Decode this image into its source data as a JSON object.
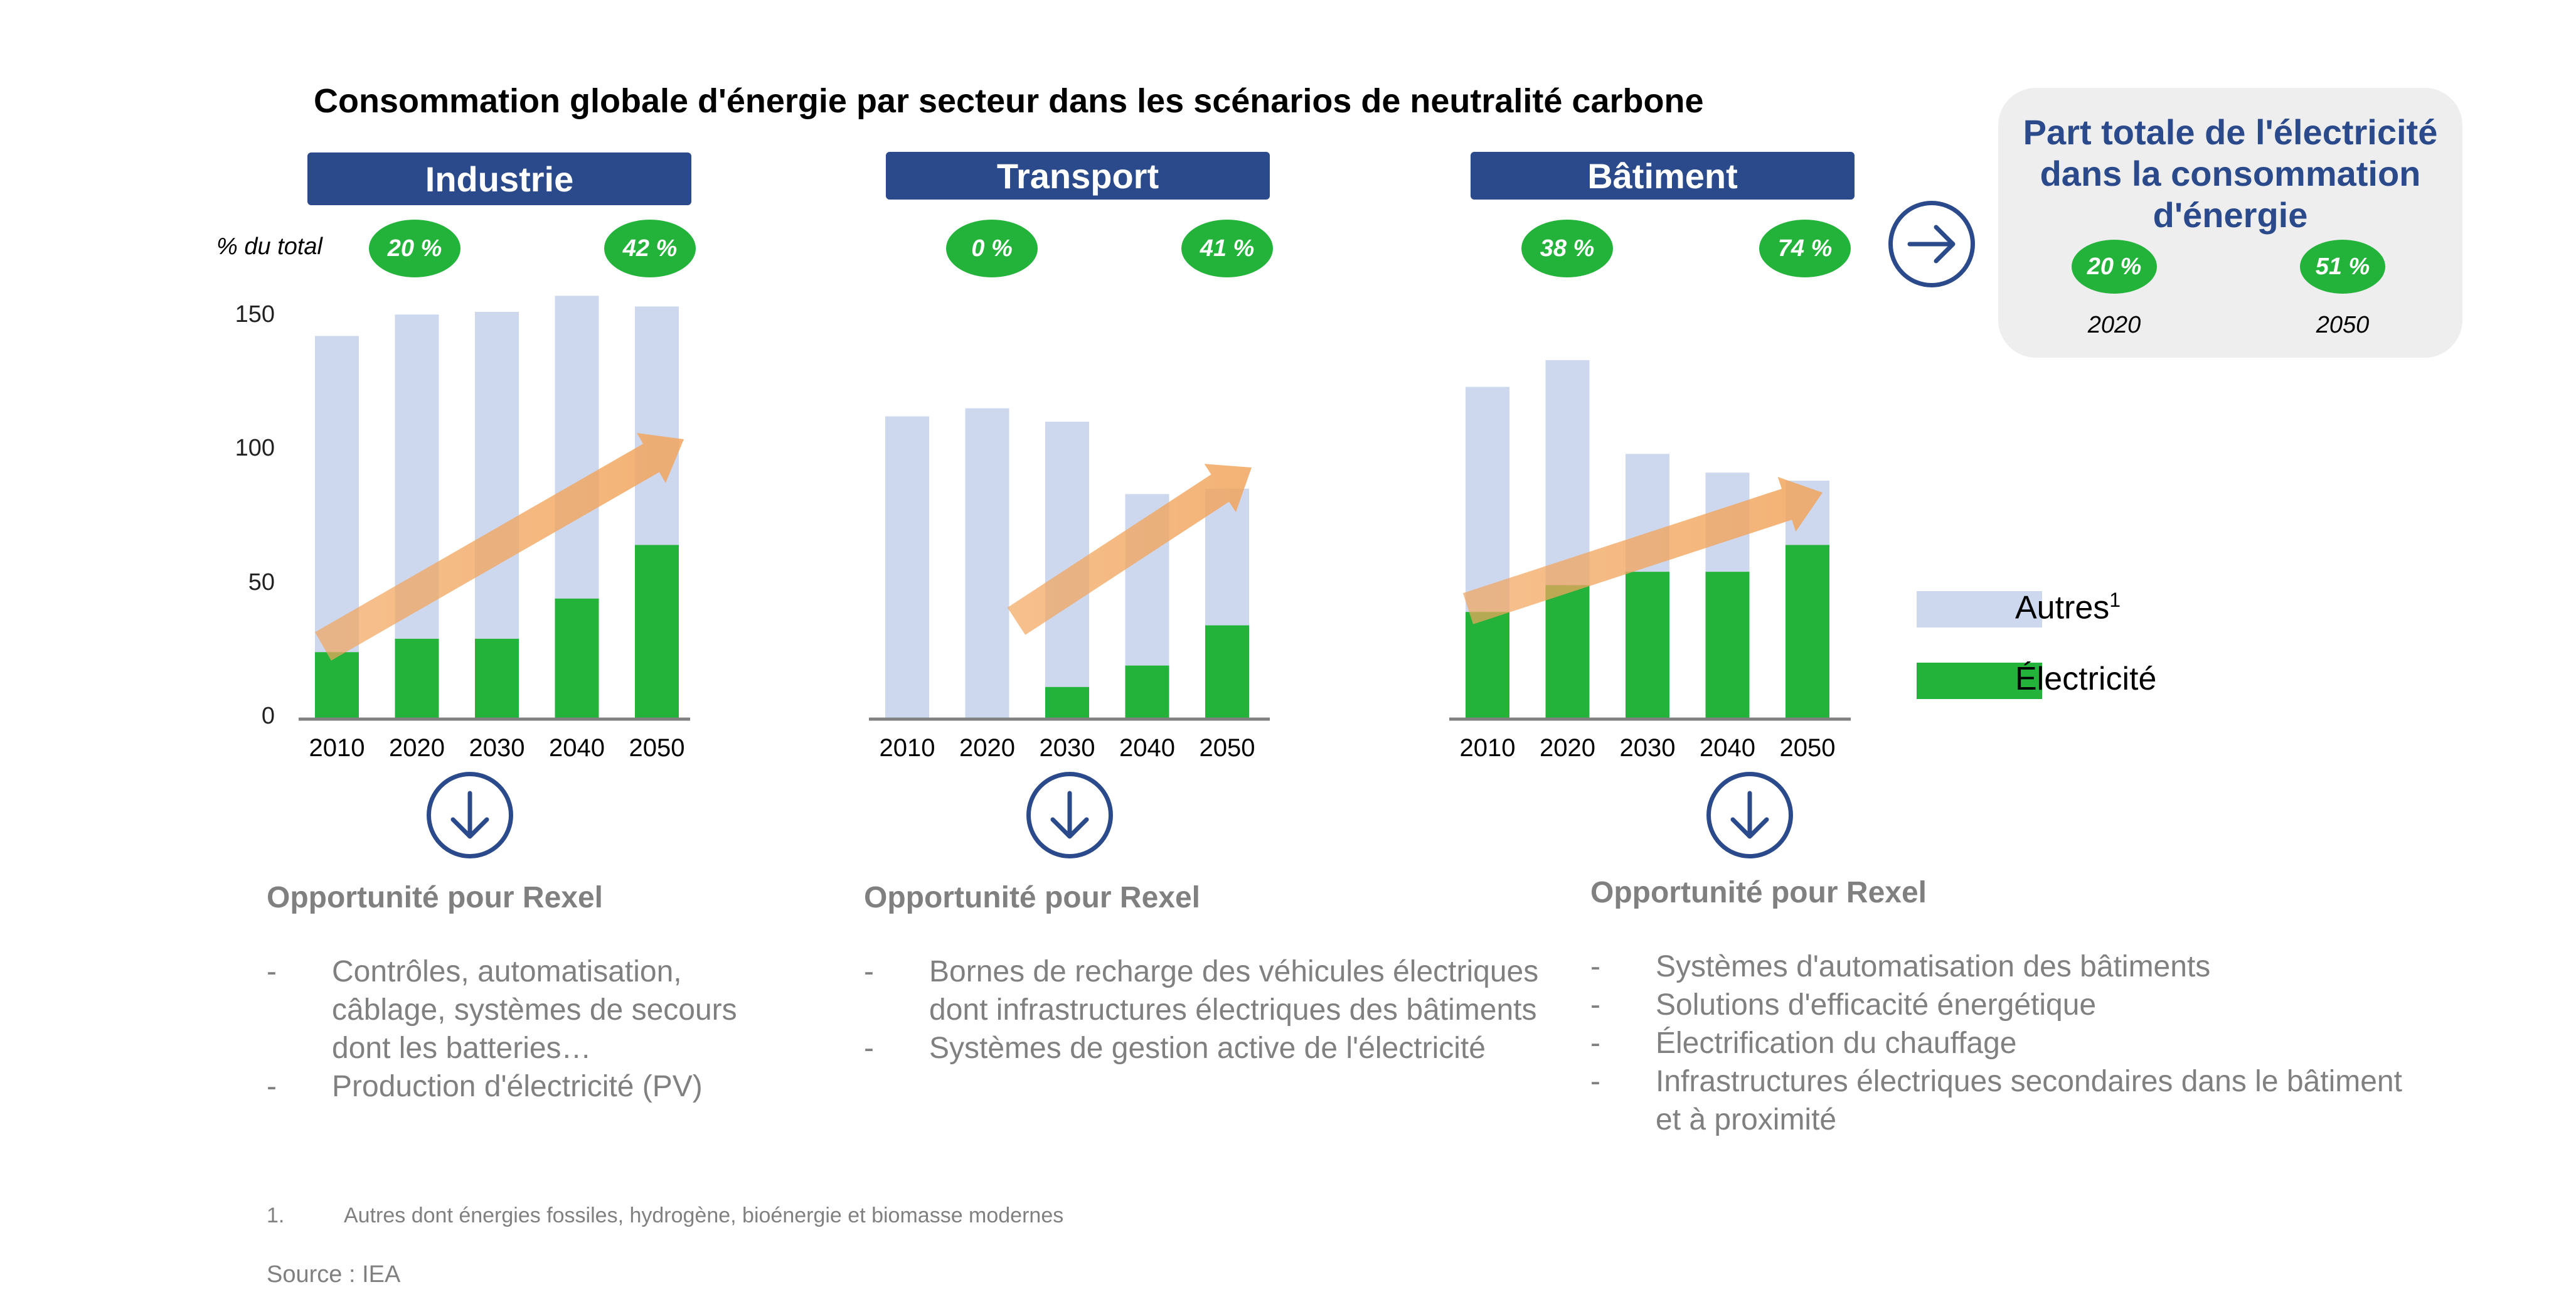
{
  "title": "Consommation globale d'énergie par secteur dans les scénarios de neutralité carbone",
  "y_axis_label": "% du total",
  "colors": {
    "autres": "#cdd8ef",
    "electricite": "#24b33a",
    "header": "#2b4a8b",
    "arrow": "#f2a55d"
  },
  "chart_data": [
    {
      "type": "bar",
      "title": "Industrie",
      "categories": [
        "2010",
        "2020",
        "2030",
        "2040",
        "2050"
      ],
      "series": [
        {
          "name": "Électricité",
          "values": [
            25,
            30,
            30,
            45,
            65
          ]
        },
        {
          "name": "Autres¹",
          "values": [
            118,
            121,
            122,
            113,
            89
          ]
        }
      ],
      "totals": [
        143,
        151,
        152,
        158,
        154
      ],
      "ylim": [
        0,
        150
      ],
      "yticks": [
        "0",
        "50",
        "100",
        "150"
      ],
      "share_2020": "20 %",
      "share_2050": "42 %"
    },
    {
      "type": "bar",
      "title": "Transport",
      "categories": [
        "2010",
        "2020",
        "2030",
        "2040",
        "2050"
      ],
      "series": [
        {
          "name": "Électricité",
          "values": [
            0,
            0,
            12,
            20,
            35
          ]
        },
        {
          "name": "Autres¹",
          "values": [
            113,
            116,
            99,
            64,
            51
          ]
        }
      ],
      "totals": [
        113,
        116,
        111,
        84,
        86
      ],
      "ylim": [
        0,
        150
      ],
      "share_2020": "0 %",
      "share_2050": "41 %"
    },
    {
      "type": "bar",
      "title": "Bâtiment",
      "categories": [
        "2010",
        "2020",
        "2030",
        "2040",
        "2050"
      ],
      "series": [
        {
          "name": "Électricité",
          "values": [
            40,
            50,
            55,
            55,
            65
          ]
        },
        {
          "name": "Autres¹",
          "values": [
            84,
            84,
            44,
            37,
            24
          ]
        }
      ],
      "totals": [
        124,
        134,
        99,
        92,
        89
      ],
      "ylim": [
        0,
        150
      ],
      "share_2020": "38 %",
      "share_2050": "74 %"
    }
  ],
  "part_totale": {
    "title": "Part totale de l'électricité dans la consommation d'énergie",
    "values": [
      {
        "year": "2020",
        "pct": "20 %"
      },
      {
        "year": "2050",
        "pct": "51 %"
      }
    ]
  },
  "legend": {
    "autres": "Autres",
    "autres_sup": "1",
    "electricite": "Électricité"
  },
  "opportunities": [
    {
      "title": "Opportunité pour Rexel",
      "items": [
        "Contrôles, automatisation, câblage, systèmes de secours dont les batteries…",
        "Production d'électricité (PV)"
      ]
    },
    {
      "title": "Opportunité pour Rexel",
      "items": [
        "Bornes de recharge des véhicules électriques dont infrastructures électriques des bâtiments",
        "Systèmes de gestion active de l'électricité"
      ]
    },
    {
      "title": "Opportunité pour Rexel",
      "items": [
        "Systèmes d'automatisation des bâtiments",
        "Solutions d'efficacité énergétique",
        "Électrification du chauffage",
        "Infrastructures électriques secondaires dans le bâtiment et à proximité"
      ]
    }
  ],
  "footnote": {
    "number": "1.",
    "text": "Autres dont énergies fossiles, hydrogène, bioénergie et biomasse modernes"
  },
  "source": "Source : IEA"
}
